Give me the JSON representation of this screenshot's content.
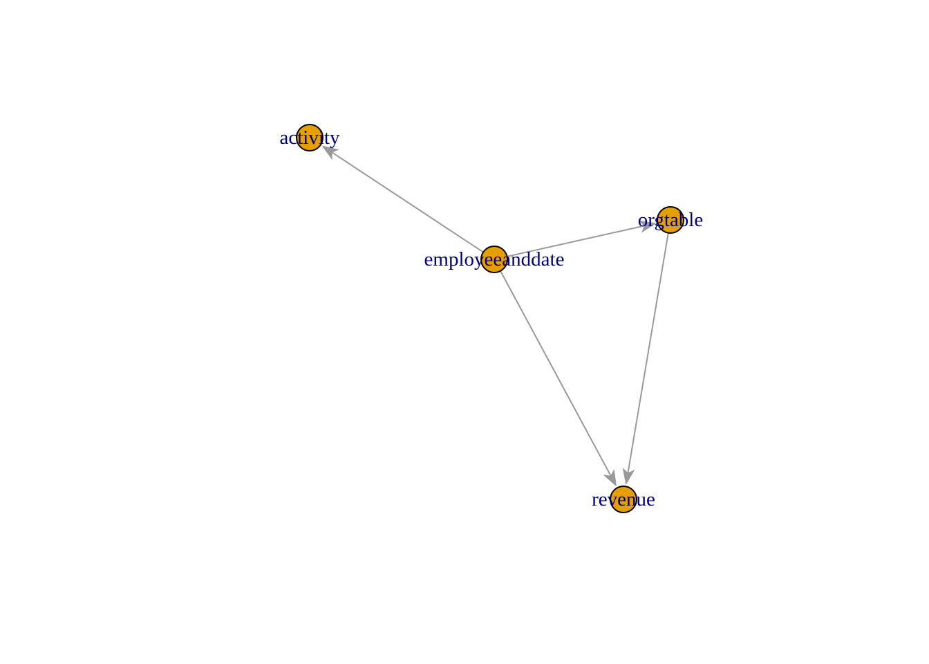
{
  "graph": {
    "directed": true,
    "nodes": [
      {
        "id": "activity",
        "label": "activity"
      },
      {
        "id": "employeeanddate",
        "label": "employeeanddate"
      },
      {
        "id": "orgtable",
        "label": "orgtable"
      },
      {
        "id": "revenue",
        "label": "revenue"
      }
    ],
    "edges": [
      {
        "from": "employeeanddate",
        "to": "activity"
      },
      {
        "from": "employeeanddate",
        "to": "orgtable"
      },
      {
        "from": "employeeanddate",
        "to": "revenue"
      },
      {
        "from": "orgtable",
        "to": "revenue"
      }
    ]
  },
  "colors": {
    "node_fill": "#E69F00",
    "node_border": "#000000",
    "edge": "#999999",
    "label": "#000080",
    "background": "#FFFFFF"
  }
}
